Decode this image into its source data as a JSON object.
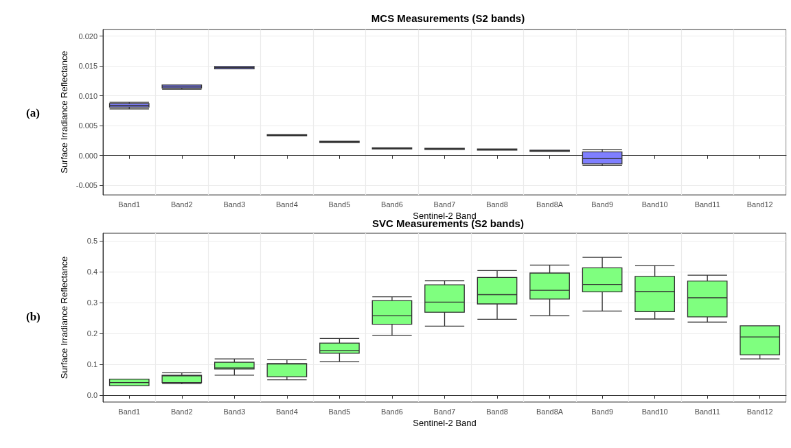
{
  "chart_data": [
    {
      "type": "box",
      "title": "MCS Measurements (S2 bands)",
      "xlabel": "Sentinel-2 Band",
      "ylabel": "Surface Irradiance Reflectance",
      "annotations": [
        "(a)"
      ],
      "categories": [
        "Band1",
        "Band2",
        "Band3",
        "Band4",
        "Band5",
        "Band6",
        "Band7",
        "Band8",
        "Band8A",
        "Band9",
        "Band10",
        "Band11",
        "Band12"
      ],
      "series": [
        {
          "color": "#7f7fff",
          "boxes": [
            {
              "low": 0.0078,
              "q1": 0.0081,
              "median": 0.0084,
              "q3": 0.0087,
              "high": 0.0089
            },
            {
              "low": 0.0111,
              "q1": 0.0113,
              "median": 0.0115,
              "q3": 0.0118,
              "high": 0.0118
            },
            {
              "low": 0.0145,
              "q1": 0.0145,
              "median": 0.0147,
              "q3": 0.0149,
              "high": 0.0149
            },
            {
              "low": 0.0033,
              "q1": 0.0033,
              "median": 0.0034,
              "q3": 0.0035,
              "high": 0.0035
            },
            {
              "low": 0.0022,
              "q1": 0.0022,
              "median": 0.0023,
              "q3": 0.0024,
              "high": 0.0024
            },
            {
              "low": 0.0011,
              "q1": 0.0011,
              "median": 0.0012,
              "q3": 0.0013,
              "high": 0.0013
            },
            {
              "low": 0.001,
              "q1": 0.001,
              "median": 0.0011,
              "q3": 0.0012,
              "high": 0.0012
            },
            {
              "low": 0.0009,
              "q1": 0.0009,
              "median": 0.001,
              "q3": 0.0011,
              "high": 0.0011
            },
            {
              "low": 0.0007,
              "q1": 0.0007,
              "median": 0.0008,
              "q3": 0.0009,
              "high": 0.0009
            },
            {
              "low": -0.0017,
              "q1": -0.0014,
              "median": -0.0005,
              "q3": 0.0006,
              "high": 0.001
            },
            null,
            null,
            null
          ]
        }
      ],
      "ylim": [
        -0.0066,
        0.0211
      ],
      "yticks": [
        -0.005,
        {
          "value": 0,
          "label": "0.000"
        },
        {
          "value": 0.005,
          "label": "0.005"
        },
        {
          "value": 0.01,
          "label": "0.010"
        },
        {
          "value": 0.015,
          "label": "0.015"
        },
        {
          "value": 0.02,
          "label": "0.020"
        }
      ],
      "grid": true
    },
    {
      "type": "box",
      "title": "SVC Measurements (S2 bands)",
      "xlabel": "Sentinel-2 Band",
      "ylabel": "Surface Irradiance Reflectance",
      "annotations": [
        "(b)"
      ],
      "categories": [
        "Band1",
        "Band2",
        "Band3",
        "Band4",
        "Band5",
        "Band6",
        "Band7",
        "Band8",
        "Band8A",
        "Band9",
        "Band10",
        "Band11",
        "Band12"
      ],
      "series": [
        {
          "color": "#7fff7f",
          "boxes": [
            {
              "low": 0.031,
              "q1": 0.031,
              "median": 0.041,
              "q3": 0.052,
              "high": 0.052
            },
            {
              "low": 0.037,
              "q1": 0.041,
              "median": 0.063,
              "q3": 0.065,
              "high": 0.073
            },
            {
              "low": 0.065,
              "q1": 0.085,
              "median": 0.089,
              "q3": 0.107,
              "high": 0.118
            },
            {
              "low": 0.05,
              "q1": 0.06,
              "median": 0.101,
              "q3": 0.103,
              "high": 0.115
            },
            {
              "low": 0.109,
              "q1": 0.136,
              "median": 0.145,
              "q3": 0.169,
              "high": 0.184
            },
            {
              "low": 0.194,
              "q1": 0.23,
              "median": 0.258,
              "q3": 0.307,
              "high": 0.319
            },
            {
              "low": 0.224,
              "q1": 0.269,
              "median": 0.302,
              "q3": 0.358,
              "high": 0.371
            },
            {
              "low": 0.246,
              "q1": 0.296,
              "median": 0.326,
              "q3": 0.382,
              "high": 0.404
            },
            {
              "low": 0.258,
              "q1": 0.312,
              "median": 0.34,
              "q3": 0.396,
              "high": 0.422
            },
            {
              "low": 0.273,
              "q1": 0.335,
              "median": 0.359,
              "q3": 0.413,
              "high": 0.447
            },
            {
              "low": 0.247,
              "q1": 0.271,
              "median": 0.336,
              "q3": 0.385,
              "high": 0.42
            },
            {
              "low": 0.237,
              "q1": 0.254,
              "median": 0.316,
              "q3": 0.37,
              "high": 0.389
            },
            {
              "low": 0.118,
              "q1": 0.131,
              "median": 0.189,
              "q3": 0.225,
              "high": 0.225
            }
          ]
        }
      ],
      "ylim": [
        -0.022,
        0.525
      ],
      "yticks": [
        {
          "value": 0,
          "label": "0.0"
        },
        0.1,
        0.2,
        0.3,
        0.4,
        0.5
      ],
      "grid": true
    }
  ]
}
